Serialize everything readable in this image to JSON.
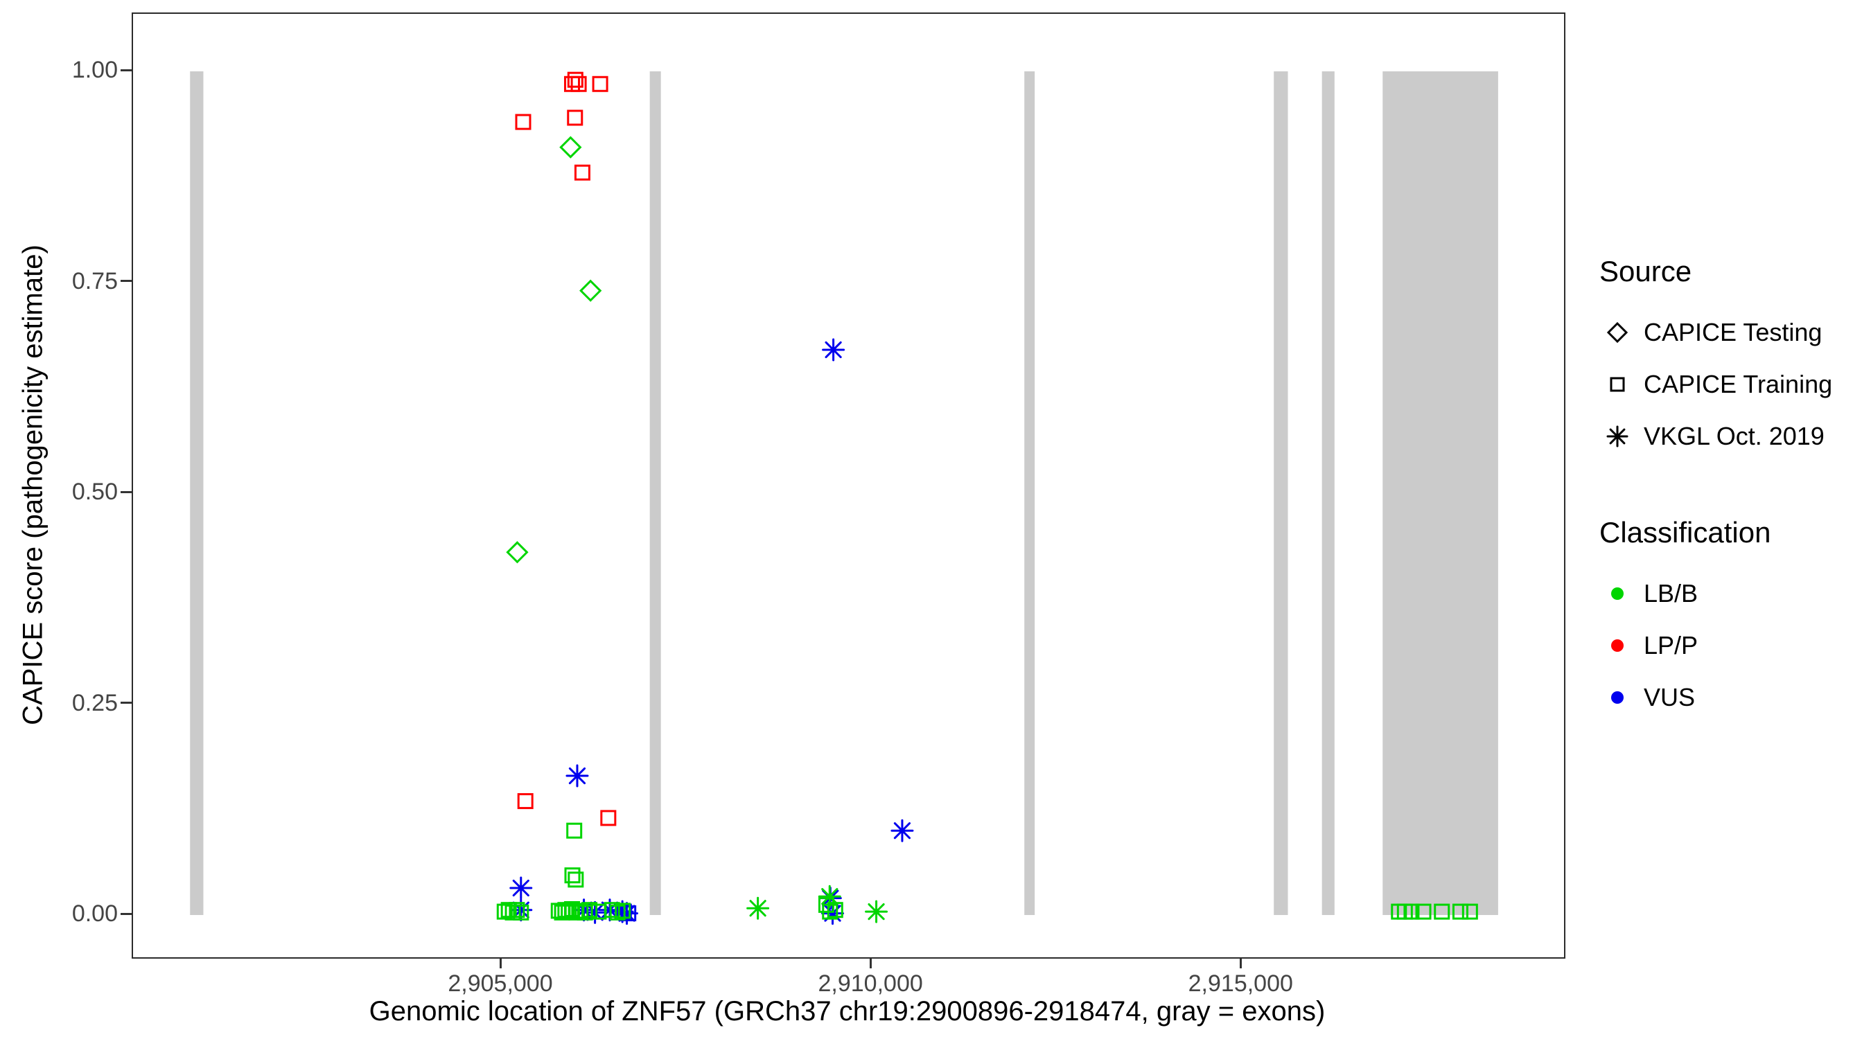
{
  "axes": {
    "x_title": "Genomic location of ZNF57 (GRCh37 chr19:2900896-2918474, gray = exons)",
    "y_title": "CAPICE score (pathogenicity estimate)",
    "x_ticks": [
      {
        "value": 2905000,
        "label": "2,905,000"
      },
      {
        "value": 2910000,
        "label": "2,910,000"
      },
      {
        "value": 2915000,
        "label": "2,915,000"
      }
    ],
    "y_ticks": [
      {
        "value": 0.0,
        "label": "0.00"
      },
      {
        "value": 0.25,
        "label": "0.25"
      },
      {
        "value": 0.5,
        "label": "0.50"
      },
      {
        "value": 0.75,
        "label": "0.75"
      },
      {
        "value": 1.0,
        "label": "1.00"
      }
    ]
  },
  "legend": {
    "source": {
      "title": "Source",
      "items": [
        {
          "shape": "diamond",
          "label": "CAPICE Testing"
        },
        {
          "shape": "square",
          "label": "CAPICE Training"
        },
        {
          "shape": "asterisk",
          "label": "VKGL Oct. 2019"
        }
      ]
    },
    "classification": {
      "title": "Classification",
      "items": [
        {
          "color": "#00D500",
          "label": "LB/B"
        },
        {
          "color": "#FF0000",
          "label": "LP/P"
        },
        {
          "color": "#0000EE",
          "label": "VUS"
        }
      ]
    }
  },
  "chart_data": {
    "type": "scatter",
    "title": "",
    "xlabel": "Genomic location of ZNF57 (GRCh37 chr19:2900896-2918474, gray = exons)",
    "ylabel": "CAPICE score (pathogenicity estimate)",
    "x_domain": [
      2900020,
      2919350
    ],
    "y_domain": [
      0,
      1
    ],
    "grid": false,
    "legend_position": "right",
    "colors": {
      "LB/B": "#00D500",
      "LP/P": "#FF0000",
      "VUS": "#0000EE",
      "exon": "#CBCBCB"
    },
    "shapes": {
      "CAPICE Testing": "diamond",
      "CAPICE Training": "square",
      "VKGL Oct. 2019": "asterisk"
    },
    "exons": [
      [
        2900790,
        2900970
      ],
      [
        2907000,
        2907150
      ],
      [
        2912060,
        2912200
      ],
      [
        2915430,
        2915620
      ],
      [
        2916080,
        2916250
      ],
      [
        2916900,
        2918460
      ]
    ],
    "points": [
      {
        "x": 2905290,
        "y": 0.94,
        "source": "CAPICE Training",
        "class": "LP/P"
      },
      {
        "x": 2905950,
        "y": 0.985,
        "source": "CAPICE Training",
        "class": "LP/P"
      },
      {
        "x": 2905995,
        "y": 0.99,
        "source": "CAPICE Training",
        "class": "LP/P"
      },
      {
        "x": 2906040,
        "y": 0.985,
        "source": "CAPICE Training",
        "class": "LP/P"
      },
      {
        "x": 2906330,
        "y": 0.985,
        "source": "CAPICE Training",
        "class": "LP/P"
      },
      {
        "x": 2905990,
        "y": 0.945,
        "source": "CAPICE Training",
        "class": "LP/P"
      },
      {
        "x": 2906090,
        "y": 0.88,
        "source": "CAPICE Training",
        "class": "LP/P"
      },
      {
        "x": 2905320,
        "y": 0.135,
        "source": "CAPICE Training",
        "class": "LP/P"
      },
      {
        "x": 2906440,
        "y": 0.115,
        "source": "CAPICE Training",
        "class": "LP/P"
      },
      {
        "x": 2905930,
        "y": 0.91,
        "source": "CAPICE Testing",
        "class": "LB/B"
      },
      {
        "x": 2906200,
        "y": 0.74,
        "source": "CAPICE Testing",
        "class": "LB/B"
      },
      {
        "x": 2905210,
        "y": 0.43,
        "source": "CAPICE Testing",
        "class": "LB/B"
      },
      {
        "x": 2909480,
        "y": 0.67,
        "source": "VKGL Oct. 2019",
        "class": "VUS"
      },
      {
        "x": 2906020,
        "y": 0.165,
        "source": "VKGL Oct. 2019",
        "class": "VUS"
      },
      {
        "x": 2910410,
        "y": 0.1,
        "source": "VKGL Oct. 2019",
        "class": "VUS"
      },
      {
        "x": 2905260,
        "y": 0.032,
        "source": "VKGL Oct. 2019",
        "class": "VUS"
      },
      {
        "x": 2905260,
        "y": 0.006,
        "source": "VKGL Oct. 2019",
        "class": "VUS"
      },
      {
        "x": 2906110,
        "y": 0.006,
        "source": "VKGL Oct. 2019",
        "class": "VUS"
      },
      {
        "x": 2906260,
        "y": 0.003,
        "source": "VKGL Oct. 2019",
        "class": "VUS"
      },
      {
        "x": 2906460,
        "y": 0.006,
        "source": "VKGL Oct. 2019",
        "class": "VUS"
      },
      {
        "x": 2906630,
        "y": 0.004,
        "source": "VKGL Oct. 2019",
        "class": "VUS"
      },
      {
        "x": 2906690,
        "y": 0.002,
        "source": "VKGL Oct. 2019",
        "class": "VUS"
      },
      {
        "x": 2909440,
        "y": 0.02,
        "source": "VKGL Oct. 2019",
        "class": "VUS"
      },
      {
        "x": 2909470,
        "y": 0.002,
        "source": "VKGL Oct. 2019",
        "class": "VUS"
      },
      {
        "x": 2906650,
        "y": 0.004,
        "source": "CAPICE Training",
        "class": "VUS"
      },
      {
        "x": 2906710,
        "y": 0.002,
        "source": "CAPICE Training",
        "class": "VUS"
      },
      {
        "x": 2905980,
        "y": 0.1,
        "source": "CAPICE Training",
        "class": "LB/B"
      },
      {
        "x": 2905955,
        "y": 0.047,
        "source": "CAPICE Training",
        "class": "LB/B"
      },
      {
        "x": 2906000,
        "y": 0.042,
        "source": "CAPICE Training",
        "class": "LB/B"
      },
      {
        "x": 2905040,
        "y": 0.004,
        "source": "CAPICE Training",
        "class": "LB/B"
      },
      {
        "x": 2905095,
        "y": 0.006,
        "source": "CAPICE Training",
        "class": "LB/B"
      },
      {
        "x": 2905150,
        "y": 0.003,
        "source": "CAPICE Training",
        "class": "LB/B"
      },
      {
        "x": 2905205,
        "y": 0.006,
        "source": "CAPICE Training",
        "class": "LB/B"
      },
      {
        "x": 2905260,
        "y": 0.003,
        "source": "CAPICE Training",
        "class": "LB/B"
      },
      {
        "x": 2905770,
        "y": 0.005,
        "source": "CAPICE Training",
        "class": "LB/B"
      },
      {
        "x": 2905815,
        "y": 0.003,
        "source": "CAPICE Training",
        "class": "LB/B"
      },
      {
        "x": 2905860,
        "y": 0.006,
        "source": "CAPICE Training",
        "class": "LB/B"
      },
      {
        "x": 2905905,
        "y": 0.004,
        "source": "CAPICE Training",
        "class": "LB/B"
      },
      {
        "x": 2905950,
        "y": 0.007,
        "source": "CAPICE Training",
        "class": "LB/B"
      },
      {
        "x": 2906010,
        "y": 0.003,
        "source": "CAPICE Training",
        "class": "LB/B"
      },
      {
        "x": 2906065,
        "y": 0.005,
        "source": "CAPICE Training",
        "class": "LB/B"
      },
      {
        "x": 2906125,
        "y": 0.003,
        "source": "CAPICE Training",
        "class": "LB/B"
      },
      {
        "x": 2906185,
        "y": 0.006,
        "source": "CAPICE Training",
        "class": "LB/B"
      },
      {
        "x": 2906310,
        "y": 0.004,
        "source": "CAPICE Training",
        "class": "LB/B"
      },
      {
        "x": 2906490,
        "y": 0.006,
        "source": "CAPICE Training",
        "class": "LB/B"
      },
      {
        "x": 2906565,
        "y": 0.003,
        "source": "CAPICE Training",
        "class": "LB/B"
      },
      {
        "x": 2906635,
        "y": 0.005,
        "source": "CAPICE Training",
        "class": "LB/B"
      },
      {
        "x": 2909385,
        "y": 0.012,
        "source": "CAPICE Training",
        "class": "LB/B"
      },
      {
        "x": 2909435,
        "y": 0.004,
        "source": "CAPICE Training",
        "class": "LB/B"
      },
      {
        "x": 2909505,
        "y": 0.006,
        "source": "CAPICE Training",
        "class": "LB/B"
      },
      {
        "x": 2917120,
        "y": 0.004,
        "source": "CAPICE Training",
        "class": "LB/B"
      },
      {
        "x": 2917200,
        "y": 0.004,
        "source": "CAPICE Training",
        "class": "LB/B"
      },
      {
        "x": 2917290,
        "y": 0.004,
        "source": "CAPICE Training",
        "class": "LB/B"
      },
      {
        "x": 2917450,
        "y": 0.004,
        "source": "CAPICE Training",
        "class": "LB/B"
      },
      {
        "x": 2917700,
        "y": 0.004,
        "source": "CAPICE Training",
        "class": "LB/B"
      },
      {
        "x": 2917950,
        "y": 0.004,
        "source": "CAPICE Training",
        "class": "LB/B"
      },
      {
        "x": 2918080,
        "y": 0.004,
        "source": "CAPICE Training",
        "class": "LB/B"
      },
      {
        "x": 2908460,
        "y": 0.008,
        "source": "VKGL Oct. 2019",
        "class": "LB/B"
      },
      {
        "x": 2909430,
        "y": 0.022,
        "source": "VKGL Oct. 2019",
        "class": "LB/B"
      },
      {
        "x": 2910060,
        "y": 0.004,
        "source": "VKGL Oct. 2019",
        "class": "LB/B"
      }
    ]
  }
}
